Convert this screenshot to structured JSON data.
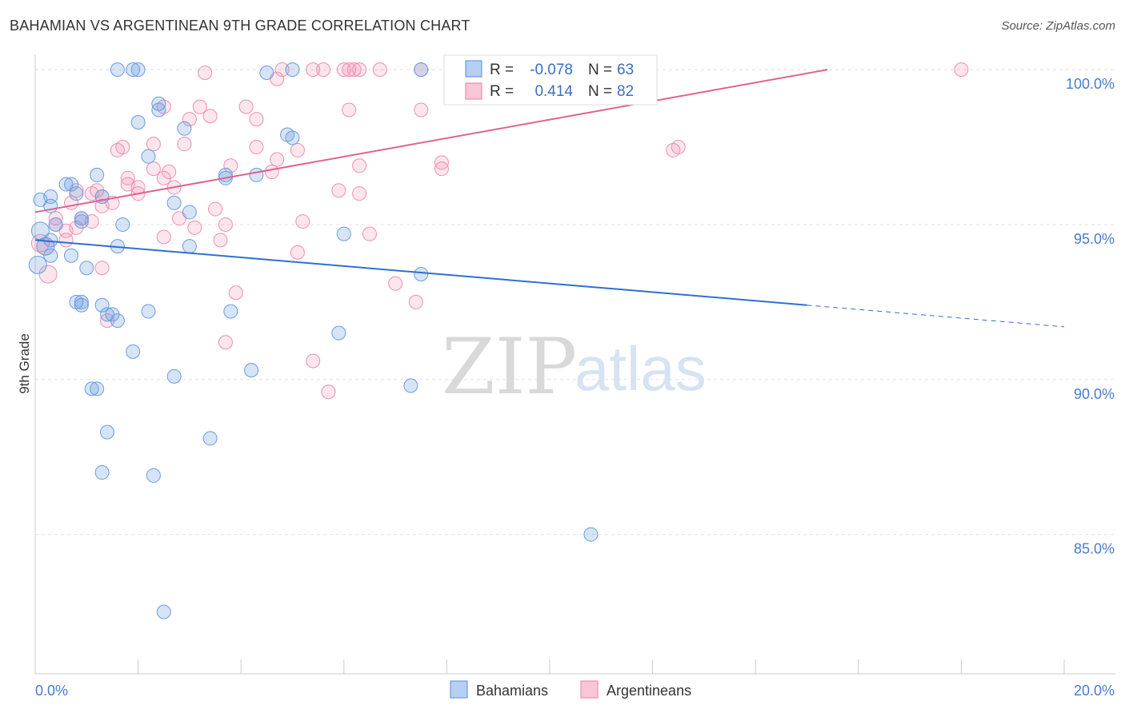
{
  "header": {
    "title": "BAHAMIAN VS ARGENTINEAN 9TH GRADE CORRELATION CHART",
    "source": "Source: ZipAtlas.com"
  },
  "watermark": {
    "zip": "ZIP",
    "atlas": "atlas"
  },
  "stats": [
    {
      "r_label": "R =",
      "r_value": "-0.078",
      "n_label": "N =",
      "n_value": "63",
      "color": "#6b9de0"
    },
    {
      "r_label": "R =",
      "r_value": "0.414",
      "n_label": "N =",
      "n_value": "82",
      "color": "#f08db0"
    }
  ],
  "chart_data": {
    "type": "scatter",
    "title": "BAHAMIAN VS ARGENTINEAN 9TH GRADE CORRELATION CHART",
    "xlabel": "",
    "ylabel": "9th Grade",
    "xlim": [
      0,
      20
    ],
    "ylim": [
      80.5,
      100.7
    ],
    "x_tick_labels": [
      "0.0%",
      "20.0%"
    ],
    "y_ticks": [
      85,
      90,
      95,
      100
    ],
    "y_tick_labels": [
      "85.0%",
      "90.0%",
      "95.0%",
      "100.0%"
    ],
    "grid": true,
    "legend_position": "bottom-center",
    "series": [
      {
        "name": "Bahamians",
        "color": "#6b9de0",
        "r": -0.078,
        "n": 63,
        "trend": {
          "x0": 0,
          "y0": 94.5,
          "x1": 15.0,
          "y1": 92.4,
          "dash_to_x": 20,
          "dash_to_y": 91.7
        },
        "points": [
          [
            1.6,
            100.0
          ],
          [
            1.9,
            100.0
          ],
          [
            2.0,
            100.0
          ],
          [
            4.5,
            99.9
          ],
          [
            5.0,
            100.0
          ],
          [
            7.5,
            100.0
          ],
          [
            2.4,
            98.9
          ],
          [
            2.4,
            98.7
          ],
          [
            2.0,
            98.3
          ],
          [
            2.9,
            98.1
          ],
          [
            4.9,
            97.9
          ],
          [
            5.0,
            97.8
          ],
          [
            2.2,
            97.2
          ],
          [
            1.2,
            96.6
          ],
          [
            3.7,
            96.6
          ],
          [
            3.7,
            96.5
          ],
          [
            4.3,
            96.6
          ],
          [
            0.6,
            96.3
          ],
          [
            0.7,
            96.3
          ],
          [
            0.8,
            96.0
          ],
          [
            1.3,
            95.9
          ],
          [
            0.1,
            95.8
          ],
          [
            0.3,
            95.9
          ],
          [
            2.7,
            95.7
          ],
          [
            0.3,
            95.6
          ],
          [
            3.0,
            95.4
          ],
          [
            0.9,
            95.2
          ],
          [
            0.9,
            95.1
          ],
          [
            1.7,
            95.0
          ],
          [
            0.4,
            95.0
          ],
          [
            0.1,
            94.8
          ],
          [
            6.0,
            94.7
          ],
          [
            0.3,
            94.5
          ],
          [
            0.2,
            94.3
          ],
          [
            1.6,
            94.3
          ],
          [
            3.0,
            94.3
          ],
          [
            0.7,
            94.0
          ],
          [
            0.3,
            94.0
          ],
          [
            1.0,
            93.6
          ],
          [
            7.5,
            93.4
          ],
          [
            0.8,
            92.5
          ],
          [
            0.9,
            92.5
          ],
          [
            0.9,
            92.4
          ],
          [
            1.3,
            92.4
          ],
          [
            1.4,
            92.1
          ],
          [
            1.5,
            92.1
          ],
          [
            1.6,
            91.9
          ],
          [
            2.2,
            92.2
          ],
          [
            3.8,
            92.2
          ],
          [
            5.9,
            91.5
          ],
          [
            1.9,
            90.9
          ],
          [
            4.2,
            90.3
          ],
          [
            2.7,
            90.1
          ],
          [
            7.3,
            89.8
          ],
          [
            1.1,
            89.7
          ],
          [
            1.2,
            89.7
          ],
          [
            1.4,
            88.3
          ],
          [
            3.4,
            88.1
          ],
          [
            1.3,
            87.0
          ],
          [
            2.3,
            86.9
          ],
          [
            10.8,
            85.0
          ],
          [
            2.5,
            82.5
          ],
          [
            0.05,
            93.7
          ]
        ]
      },
      {
        "name": "Argentineans",
        "color": "#f08db0",
        "r": 0.414,
        "n": 82,
        "trend": {
          "x0": 0,
          "y0": 95.4,
          "x1": 15.4,
          "y1": 100.0
        },
        "points": [
          [
            3.3,
            99.9
          ],
          [
            4.8,
            100.0
          ],
          [
            5.4,
            100.0
          ],
          [
            5.6,
            100.0
          ],
          [
            6.0,
            100.0
          ],
          [
            6.1,
            100.0
          ],
          [
            6.2,
            100.0
          ],
          [
            6.3,
            100.0
          ],
          [
            6.7,
            100.0
          ],
          [
            7.5,
            100.0
          ],
          [
            8.3,
            100.0
          ],
          [
            8.5,
            100.0
          ],
          [
            9.1,
            100.0
          ],
          [
            9.4,
            100.0
          ],
          [
            18.0,
            100.0
          ],
          [
            4.7,
            99.7
          ],
          [
            2.5,
            98.8
          ],
          [
            3.2,
            98.8
          ],
          [
            4.1,
            98.8
          ],
          [
            6.1,
            98.7
          ],
          [
            7.5,
            98.7
          ],
          [
            3.4,
            98.5
          ],
          [
            3.0,
            98.4
          ],
          [
            4.3,
            98.4
          ],
          [
            2.3,
            97.6
          ],
          [
            2.9,
            97.6
          ],
          [
            1.7,
            97.5
          ],
          [
            1.6,
            97.4
          ],
          [
            4.3,
            97.5
          ],
          [
            5.1,
            97.4
          ],
          [
            12.5,
            97.5
          ],
          [
            12.4,
            97.4
          ],
          [
            4.7,
            97.1
          ],
          [
            7.9,
            97.0
          ],
          [
            6.3,
            96.9
          ],
          [
            3.8,
            96.9
          ],
          [
            7.9,
            96.8
          ],
          [
            2.3,
            96.8
          ],
          [
            2.6,
            96.7
          ],
          [
            4.6,
            96.7
          ],
          [
            1.8,
            96.5
          ],
          [
            2.5,
            96.5
          ],
          [
            1.8,
            96.3
          ],
          [
            2.0,
            96.2
          ],
          [
            2.7,
            96.2
          ],
          [
            0.8,
            96.1
          ],
          [
            1.2,
            96.1
          ],
          [
            5.9,
            96.1
          ],
          [
            6.3,
            96.0
          ],
          [
            1.1,
            96.0
          ],
          [
            1.3,
            95.9
          ],
          [
            2.0,
            96.0
          ],
          [
            0.7,
            95.7
          ],
          [
            1.5,
            95.7
          ],
          [
            1.3,
            95.6
          ],
          [
            3.5,
            95.5
          ],
          [
            2.8,
            95.2
          ],
          [
            5.2,
            95.1
          ],
          [
            0.4,
            95.2
          ],
          [
            1.1,
            95.1
          ],
          [
            3.7,
            95.0
          ],
          [
            0.8,
            94.9
          ],
          [
            3.1,
            94.9
          ],
          [
            0.6,
            94.8
          ],
          [
            6.5,
            94.7
          ],
          [
            0.6,
            94.5
          ],
          [
            2.5,
            94.6
          ],
          [
            3.6,
            94.5
          ],
          [
            0.1,
            94.4
          ],
          [
            0.2,
            94.3
          ],
          [
            5.1,
            94.1
          ],
          [
            1.3,
            93.6
          ],
          [
            0.25,
            93.4
          ],
          [
            7.0,
            93.1
          ],
          [
            3.9,
            92.8
          ],
          [
            7.4,
            92.5
          ],
          [
            1.4,
            91.9
          ],
          [
            3.7,
            91.2
          ],
          [
            5.4,
            90.6
          ],
          [
            5.7,
            89.6
          ],
          [
            0.4,
            95.0
          ],
          [
            0.9,
            95.2
          ]
        ]
      }
    ]
  }
}
